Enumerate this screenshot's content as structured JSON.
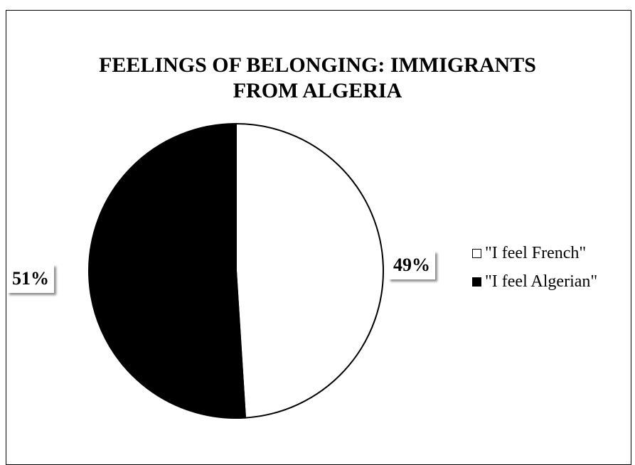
{
  "chart_data": {
    "type": "pie",
    "title": "FEELINGS OF BELONGING:  IMMIGRANTS\nFROM ALGERIA",
    "slices": [
      {
        "label": "\"I feel French\"",
        "value": 49,
        "display": "49%",
        "color": "#ffffff"
      },
      {
        "label": "\"I feel Algerian\"",
        "value": 51,
        "display": "51%",
        "color": "#000000"
      }
    ],
    "legend_position": "right"
  }
}
